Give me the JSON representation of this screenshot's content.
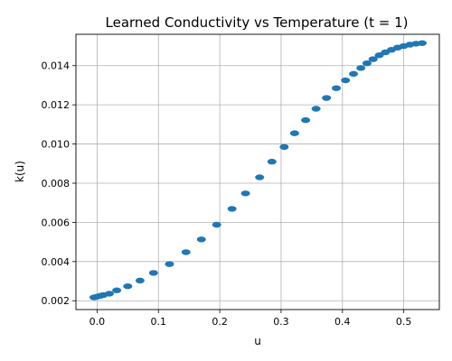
{
  "chart_data": {
    "type": "scatter",
    "title": "Learned Conductivity vs Temperature (t = 1)",
    "xlabel": "u",
    "ylabel": "k(u)",
    "xlim": [
      -0.0345,
      0.558
    ],
    "ylim": [
      0.00155,
      0.0156
    ],
    "xticks": [
      0.0,
      0.1,
      0.2,
      0.3,
      0.4,
      0.5
    ],
    "xtick_labels": [
      "0.0",
      "0.1",
      "0.2",
      "0.3",
      "0.4",
      "0.5"
    ],
    "yticks": [
      0.002,
      0.004,
      0.006,
      0.008,
      0.01,
      0.012,
      0.014
    ],
    "ytick_labels": [
      "0.002",
      "0.004",
      "0.006",
      "0.008",
      "0.010",
      "0.012",
      "0.014"
    ],
    "grid": true,
    "marker_color": "#1f77b4",
    "series": [
      {
        "x": [
          -0.005,
          0.0,
          0.005,
          0.01,
          0.02,
          0.032,
          0.05,
          0.07,
          0.092,
          0.118,
          0.145,
          0.17,
          0.195,
          0.22,
          0.242,
          0.265,
          0.285,
          0.305,
          0.322,
          0.34,
          0.357,
          0.374,
          0.39,
          0.405,
          0.418,
          0.43,
          0.44,
          0.45,
          0.46,
          0.47,
          0.48,
          0.49,
          0.5,
          0.51,
          0.52,
          0.53
        ],
        "y": [
          0.00217,
          0.00221,
          0.00225,
          0.00229,
          0.00236,
          0.00253,
          0.00274,
          0.00303,
          0.00342,
          0.00387,
          0.00448,
          0.00513,
          0.00588,
          0.00669,
          0.00748,
          0.0083,
          0.0091,
          0.00985,
          0.01055,
          0.01122,
          0.0118,
          0.01235,
          0.01285,
          0.01325,
          0.01358,
          0.01388,
          0.01412,
          0.01433,
          0.01453,
          0.01468,
          0.01481,
          0.01492,
          0.015,
          0.01507,
          0.01512,
          0.01515
        ]
      }
    ]
  }
}
